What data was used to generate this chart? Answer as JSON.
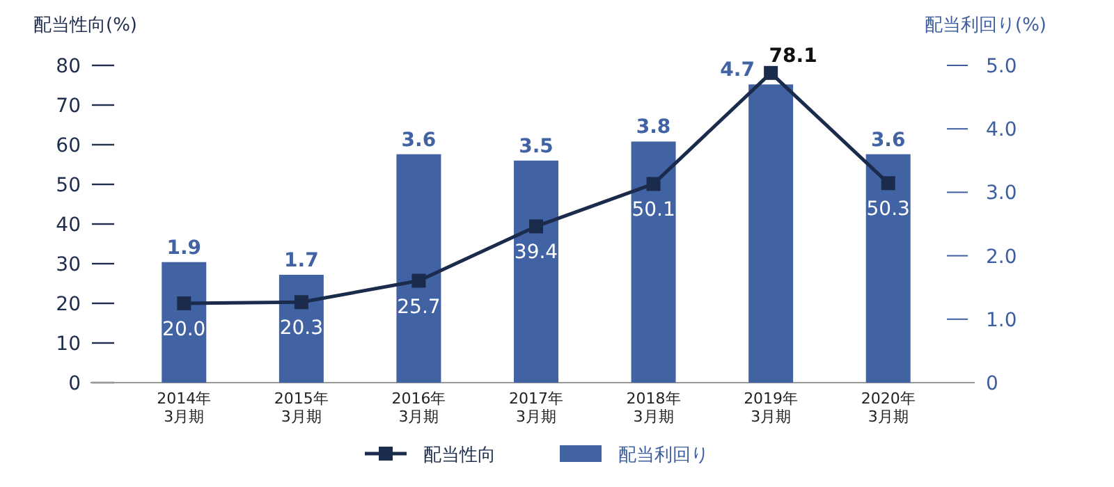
{
  "chart_data": {
    "type": "bar",
    "ylabel": "配当性向(%)",
    "y2label": "配当利回り(%)",
    "categories": [
      "2014年\n3月期",
      "2015年\n3月期",
      "2016年\n3月期",
      "2017年\n3月期",
      "2018年\n3月期",
      "2019年\n3月期",
      "2020年\n3月期"
    ],
    "series": [
      {
        "name": "配当性向",
        "type": "line",
        "color": "#1b2b4b",
        "values": [
          20.0,
          20.3,
          25.7,
          39.4,
          50.1,
          78.1,
          50.3
        ],
        "value_labels": [
          "20.0",
          "20.3",
          "25.7",
          "39.4",
          "50.1",
          "78.1",
          "50.3"
        ]
      },
      {
        "name": "配当利回り",
        "axis": "y2",
        "color": "#4263a3",
        "values": [
          1.9,
          1.7,
          3.6,
          3.5,
          3.8,
          4.7,
          3.6
        ],
        "value_labels": [
          "1.9",
          "1.7",
          "3.6",
          "3.5",
          "3.8",
          "4.7",
          "3.6"
        ]
      }
    ],
    "ylim": [
      0,
      80
    ],
    "yticks": [
      0,
      10,
      20,
      30,
      40,
      50,
      60,
      70,
      80
    ],
    "y2lim": [
      0,
      5
    ],
    "y2ticks": [
      {
        "value": 0,
        "label": "0"
      },
      {
        "value": 1,
        "label": "1.0"
      },
      {
        "value": 2,
        "label": "2.0"
      },
      {
        "value": 3,
        "label": "3.0"
      },
      {
        "value": 4,
        "label": "4.0"
      },
      {
        "value": 5,
        "label": "5.0"
      }
    ],
    "legend": "bottom",
    "marker": "square",
    "grid": false
  }
}
